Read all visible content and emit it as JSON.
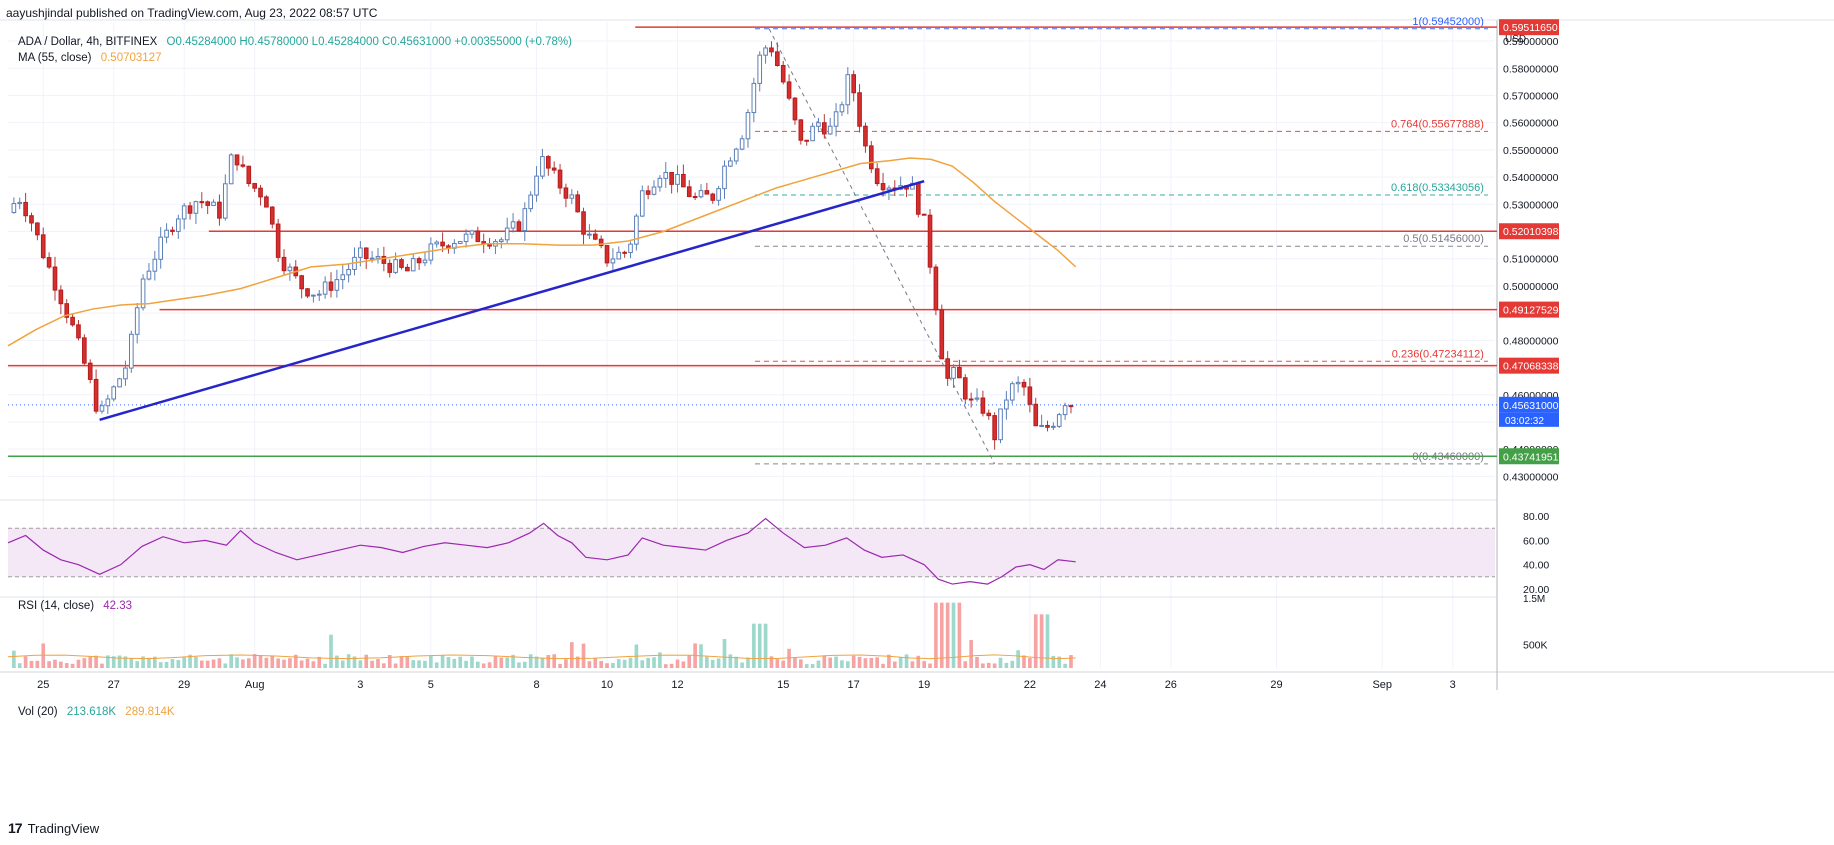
{
  "header": {
    "caption": "aayushjindal published on TradingView.com, Aug 23, 2022 08:57 UTC",
    "symbol": "ADA / Dollar, 4h, BITFINEX",
    "ohlc": "O0.45284000  H0.45780000  L0.45284000  C0.45631000  +0.00355000 (+0.78%)",
    "ma_label": "MA (55, close)",
    "ma_value": "0.50703127",
    "rsi_label": "RSI (14, close)",
    "rsi_value": "42.33",
    "vol_label": "Vol (20)",
    "vol_value1": "213.618K",
    "vol_value2": "289.814K",
    "currency": "USD",
    "countdown": "03:02:32"
  },
  "branding": {
    "logo_text": "TradingView",
    "logo_mark": "17"
  },
  "colors": {
    "up": "#26a69a",
    "down": "#ef5350",
    "candle_up_body": "#5b9cd6",
    "candle_down_body": "#d32f2f",
    "ma": "#f0a33e",
    "trend": "#2525c9",
    "resistance": "#e53935",
    "support": "#43a047",
    "fib_red": "#e57373",
    "fib_teal": "#4db6ac",
    "fib_gray": "#787b86",
    "rsi": "#9c27b0"
  },
  "chart_data": {
    "type": "candlestick",
    "interval": "4h",
    "ylim": [
      0.425,
      0.597
    ],
    "y_ticks": [
      "0.59000000",
      "0.58000000",
      "0.57000000",
      "0.56000000",
      "0.55000000",
      "0.54000000",
      "0.53000000",
      "0.52000000",
      "0.51000000",
      "0.50000000",
      "0.49000000",
      "0.48000000",
      "0.47000000",
      "0.46000000",
      "0.45000000",
      "0.44000000",
      "0.43000000"
    ],
    "x_ticks": [
      {
        "label": "25",
        "day": 25
      },
      {
        "label": "27",
        "day": 27
      },
      {
        "label": "29",
        "day": 29
      },
      {
        "label": "Aug",
        "day": 31
      },
      {
        "label": "3",
        "day": 34
      },
      {
        "label": "5",
        "day": 36
      },
      {
        "label": "8",
        "day": 39
      },
      {
        "label": "10",
        "day": 41
      },
      {
        "label": "12",
        "day": 43
      },
      {
        "label": "15",
        "day": 46
      },
      {
        "label": "17",
        "day": 48
      },
      {
        "label": "19",
        "day": 50
      },
      {
        "label": "22",
        "day": 53
      },
      {
        "label": "24",
        "day": 55
      },
      {
        "label": "26",
        "day": 57
      },
      {
        "label": "29",
        "day": 60
      },
      {
        "label": "Sep",
        "day": 63
      },
      {
        "label": "3",
        "day": 65
      }
    ],
    "price_tags": [
      {
        "label": "0.59511650",
        "value": 0.5951,
        "color": "#e53935"
      },
      {
        "label": "0.52010398",
        "value": 0.5201,
        "color": "#e53935"
      },
      {
        "label": "0.49127529",
        "value": 0.4913,
        "color": "#e53935"
      },
      {
        "label": "0.47068338",
        "value": 0.4707,
        "color": "#e53935"
      },
      {
        "label": "0.45631000",
        "value": 0.4563,
        "color": "#2962ff"
      },
      {
        "label": "0.43741951",
        "value": 0.4374,
        "color": "#43a047"
      }
    ],
    "horizontal_levels": [
      {
        "value": 0.5951,
        "color": "#e53935",
        "from_day": 41.8
      },
      {
        "value": 0.5201,
        "color": "#e53935",
        "from_day": 29.7
      },
      {
        "value": 0.4913,
        "color": "#e53935",
        "from_day": 28.3
      },
      {
        "value": 0.4707,
        "color": "#e53935",
        "from_day": 24.0
      },
      {
        "value": 0.4374,
        "color": "#43a047",
        "from_day": 24.0
      }
    ],
    "fib_levels": [
      {
        "label": "1(0.59452000)",
        "value": 0.5945,
        "color": "#2962ff"
      },
      {
        "label": "0.764(0.55677888)",
        "value": 0.5568,
        "color": "#e53935"
      },
      {
        "label": "0.618(0.53343056)",
        "value": 0.5334,
        "color": "#26a69a"
      },
      {
        "label": "0.5(0.51456000)",
        "value": 0.5146,
        "color": "#787b86"
      },
      {
        "label": "0.236(0.47234112)",
        "value": 0.4723,
        "color": "#e53935"
      },
      {
        "label": "0(0.43460000)",
        "value": 0.4346,
        "color": "#787b86"
      }
    ],
    "trendline": {
      "from": {
        "day": 26.6,
        "price": 0.4508
      },
      "to": {
        "day": 50.0,
        "price": 0.5385
      }
    },
    "ma": [
      {
        "day": 24.0,
        "price": 0.478
      },
      {
        "day": 24.8,
        "price": 0.484
      },
      {
        "day": 25.6,
        "price": 0.489
      },
      {
        "day": 26.4,
        "price": 0.4915
      },
      {
        "day": 27.2,
        "price": 0.493
      },
      {
        "day": 28.0,
        "price": 0.4935
      },
      {
        "day": 28.8,
        "price": 0.495
      },
      {
        "day": 29.6,
        "price": 0.4965
      },
      {
        "day": 30.6,
        "price": 0.499
      },
      {
        "day": 31.6,
        "price": 0.503
      },
      {
        "day": 32.6,
        "price": 0.507
      },
      {
        "day": 33.6,
        "price": 0.508
      },
      {
        "day": 34.6,
        "price": 0.51
      },
      {
        "day": 35.6,
        "price": 0.512
      },
      {
        "day": 36.6,
        "price": 0.514
      },
      {
        "day": 37.6,
        "price": 0.5155
      },
      {
        "day": 38.6,
        "price": 0.5155
      },
      {
        "day": 39.6,
        "price": 0.515
      },
      {
        "day": 40.6,
        "price": 0.515
      },
      {
        "day": 41.6,
        "price": 0.5165
      },
      {
        "day": 42.6,
        "price": 0.52
      },
      {
        "day": 43.4,
        "price": 0.524
      },
      {
        "day": 44.2,
        "price": 0.528
      },
      {
        "day": 45.0,
        "price": 0.532
      },
      {
        "day": 45.8,
        "price": 0.536
      },
      {
        "day": 46.6,
        "price": 0.539
      },
      {
        "day": 47.4,
        "price": 0.542
      },
      {
        "day": 48.2,
        "price": 0.545
      },
      {
        "day": 49.0,
        "price": 0.546
      },
      {
        "day": 49.6,
        "price": 0.547
      },
      {
        "day": 50.2,
        "price": 0.5465
      },
      {
        "day": 50.8,
        "price": 0.544
      },
      {
        "day": 51.4,
        "price": 0.538
      },
      {
        "day": 52.0,
        "price": 0.531
      },
      {
        "day": 52.6,
        "price": 0.525
      },
      {
        "day": 53.2,
        "price": 0.519
      },
      {
        "day": 53.8,
        "price": 0.513
      },
      {
        "day": 54.3,
        "price": 0.507
      }
    ],
    "price_keypoints": [
      {
        "day": 24.0,
        "price": 0.527
      },
      {
        "day": 24.3,
        "price": 0.533
      },
      {
        "day": 24.6,
        "price": 0.526
      },
      {
        "day": 25.0,
        "price": 0.512
      },
      {
        "day": 25.4,
        "price": 0.499
      },
      {
        "day": 25.8,
        "price": 0.486
      },
      {
        "day": 26.2,
        "price": 0.47
      },
      {
        "day": 26.6,
        "price": 0.452
      },
      {
        "day": 27.0,
        "price": 0.462
      },
      {
        "day": 27.4,
        "price": 0.472
      },
      {
        "day": 27.8,
        "price": 0.502
      },
      {
        "day": 28.2,
        "price": 0.512
      },
      {
        "day": 28.8,
        "price": 0.526
      },
      {
        "day": 29.4,
        "price": 0.532
      },
      {
        "day": 30.0,
        "price": 0.527
      },
      {
        "day": 30.4,
        "price": 0.55
      },
      {
        "day": 30.8,
        "price": 0.538
      },
      {
        "day": 31.3,
        "price": 0.533
      },
      {
        "day": 31.7,
        "price": 0.511
      },
      {
        "day": 32.3,
        "price": 0.5
      },
      {
        "day": 32.8,
        "price": 0.497
      },
      {
        "day": 33.4,
        "price": 0.503
      },
      {
        "day": 34.0,
        "price": 0.511
      },
      {
        "day": 34.6,
        "price": 0.509
      },
      {
        "day": 35.3,
        "price": 0.505
      },
      {
        "day": 36.0,
        "price": 0.513
      },
      {
        "day": 36.6,
        "price": 0.517
      },
      {
        "day": 37.3,
        "price": 0.518
      },
      {
        "day": 38.0,
        "price": 0.517
      },
      {
        "day": 38.6,
        "price": 0.524
      },
      {
        "day": 39.1,
        "price": 0.547
      },
      {
        "day": 39.6,
        "price": 0.538
      },
      {
        "day": 40.0,
        "price": 0.532
      },
      {
        "day": 40.4,
        "price": 0.519
      },
      {
        "day": 41.0,
        "price": 0.51
      },
      {
        "day": 41.6,
        "price": 0.513
      },
      {
        "day": 42.0,
        "price": 0.534
      },
      {
        "day": 42.5,
        "price": 0.542
      },
      {
        "day": 43.0,
        "price": 0.538
      },
      {
        "day": 43.5,
        "price": 0.532
      },
      {
        "day": 44.0,
        "price": 0.533
      },
      {
        "day": 44.4,
        "price": 0.546
      },
      {
        "day": 44.9,
        "price": 0.558
      },
      {
        "day": 45.3,
        "price": 0.583
      },
      {
        "day": 45.6,
        "price": 0.59
      },
      {
        "day": 46.0,
        "price": 0.575
      },
      {
        "day": 46.5,
        "price": 0.552
      },
      {
        "day": 47.0,
        "price": 0.56
      },
      {
        "day": 47.4,
        "price": 0.557
      },
      {
        "day": 47.9,
        "price": 0.578
      },
      {
        "day": 48.3,
        "price": 0.552
      },
      {
        "day": 48.7,
        "price": 0.539
      },
      {
        "day": 49.1,
        "price": 0.537
      },
      {
        "day": 49.6,
        "price": 0.538
      },
      {
        "day": 50.0,
        "price": 0.523
      },
      {
        "day": 50.3,
        "price": 0.497
      },
      {
        "day": 50.6,
        "price": 0.465
      },
      {
        "day": 50.9,
        "price": 0.468
      },
      {
        "day": 51.3,
        "price": 0.457
      },
      {
        "day": 51.7,
        "price": 0.455
      },
      {
        "day": 52.0,
        "price": 0.445
      },
      {
        "day": 52.4,
        "price": 0.462
      },
      {
        "day": 52.8,
        "price": 0.464
      },
      {
        "day": 53.2,
        "price": 0.446
      },
      {
        "day": 53.6,
        "price": 0.449
      },
      {
        "day": 54.0,
        "price": 0.458
      },
      {
        "day": 54.3,
        "price": 0.456
      }
    ],
    "rsi": {
      "ylim": [
        15,
        85
      ],
      "ticks": [
        "80.00",
        "60.00",
        "40.00",
        "20.00"
      ],
      "upper": 70,
      "lower": 30,
      "values": [
        {
          "day": 24.0,
          "v": 58
        },
        {
          "day": 24.5,
          "v": 64
        },
        {
          "day": 25.0,
          "v": 52
        },
        {
          "day": 25.5,
          "v": 44
        },
        {
          "day": 26.0,
          "v": 40
        },
        {
          "day": 26.6,
          "v": 32
        },
        {
          "day": 27.2,
          "v": 40
        },
        {
          "day": 27.8,
          "v": 55
        },
        {
          "day": 28.4,
          "v": 63
        },
        {
          "day": 29.0,
          "v": 58
        },
        {
          "day": 29.6,
          "v": 60
        },
        {
          "day": 30.2,
          "v": 56
        },
        {
          "day": 30.6,
          "v": 68
        },
        {
          "day": 31.0,
          "v": 58
        },
        {
          "day": 31.6,
          "v": 50
        },
        {
          "day": 32.2,
          "v": 44
        },
        {
          "day": 32.8,
          "v": 48
        },
        {
          "day": 33.4,
          "v": 52
        },
        {
          "day": 34.0,
          "v": 56
        },
        {
          "day": 34.6,
          "v": 54
        },
        {
          "day": 35.2,
          "v": 50
        },
        {
          "day": 35.8,
          "v": 55
        },
        {
          "day": 36.4,
          "v": 58
        },
        {
          "day": 37.0,
          "v": 56
        },
        {
          "day": 37.6,
          "v": 54
        },
        {
          "day": 38.2,
          "v": 58
        },
        {
          "day": 38.8,
          "v": 66
        },
        {
          "day": 39.2,
          "v": 74
        },
        {
          "day": 39.6,
          "v": 64
        },
        {
          "day": 40.0,
          "v": 58
        },
        {
          "day": 40.4,
          "v": 46
        },
        {
          "day": 41.0,
          "v": 44
        },
        {
          "day": 41.6,
          "v": 48
        },
        {
          "day": 42.0,
          "v": 62
        },
        {
          "day": 42.6,
          "v": 56
        },
        {
          "day": 43.2,
          "v": 54
        },
        {
          "day": 43.8,
          "v": 52
        },
        {
          "day": 44.4,
          "v": 60
        },
        {
          "day": 45.0,
          "v": 66
        },
        {
          "day": 45.5,
          "v": 78
        },
        {
          "day": 46.0,
          "v": 66
        },
        {
          "day": 46.6,
          "v": 54
        },
        {
          "day": 47.2,
          "v": 56
        },
        {
          "day": 47.8,
          "v": 62
        },
        {
          "day": 48.3,
          "v": 52
        },
        {
          "day": 48.8,
          "v": 46
        },
        {
          "day": 49.4,
          "v": 48
        },
        {
          "day": 50.0,
          "v": 40
        },
        {
          "day": 50.4,
          "v": 28
        },
        {
          "day": 50.8,
          "v": 24
        },
        {
          "day": 51.3,
          "v": 26
        },
        {
          "day": 51.8,
          "v": 24
        },
        {
          "day": 52.2,
          "v": 30
        },
        {
          "day": 52.6,
          "v": 38
        },
        {
          "day": 53.0,
          "v": 40
        },
        {
          "day": 53.4,
          "v": 36
        },
        {
          "day": 53.8,
          "v": 44
        },
        {
          "day": 54.3,
          "v": 42.33
        }
      ]
    },
    "volume": {
      "ytick": "500K",
      "ytick_value": 500,
      "top_tick_label": "1.5M",
      "max": 1500
    }
  }
}
